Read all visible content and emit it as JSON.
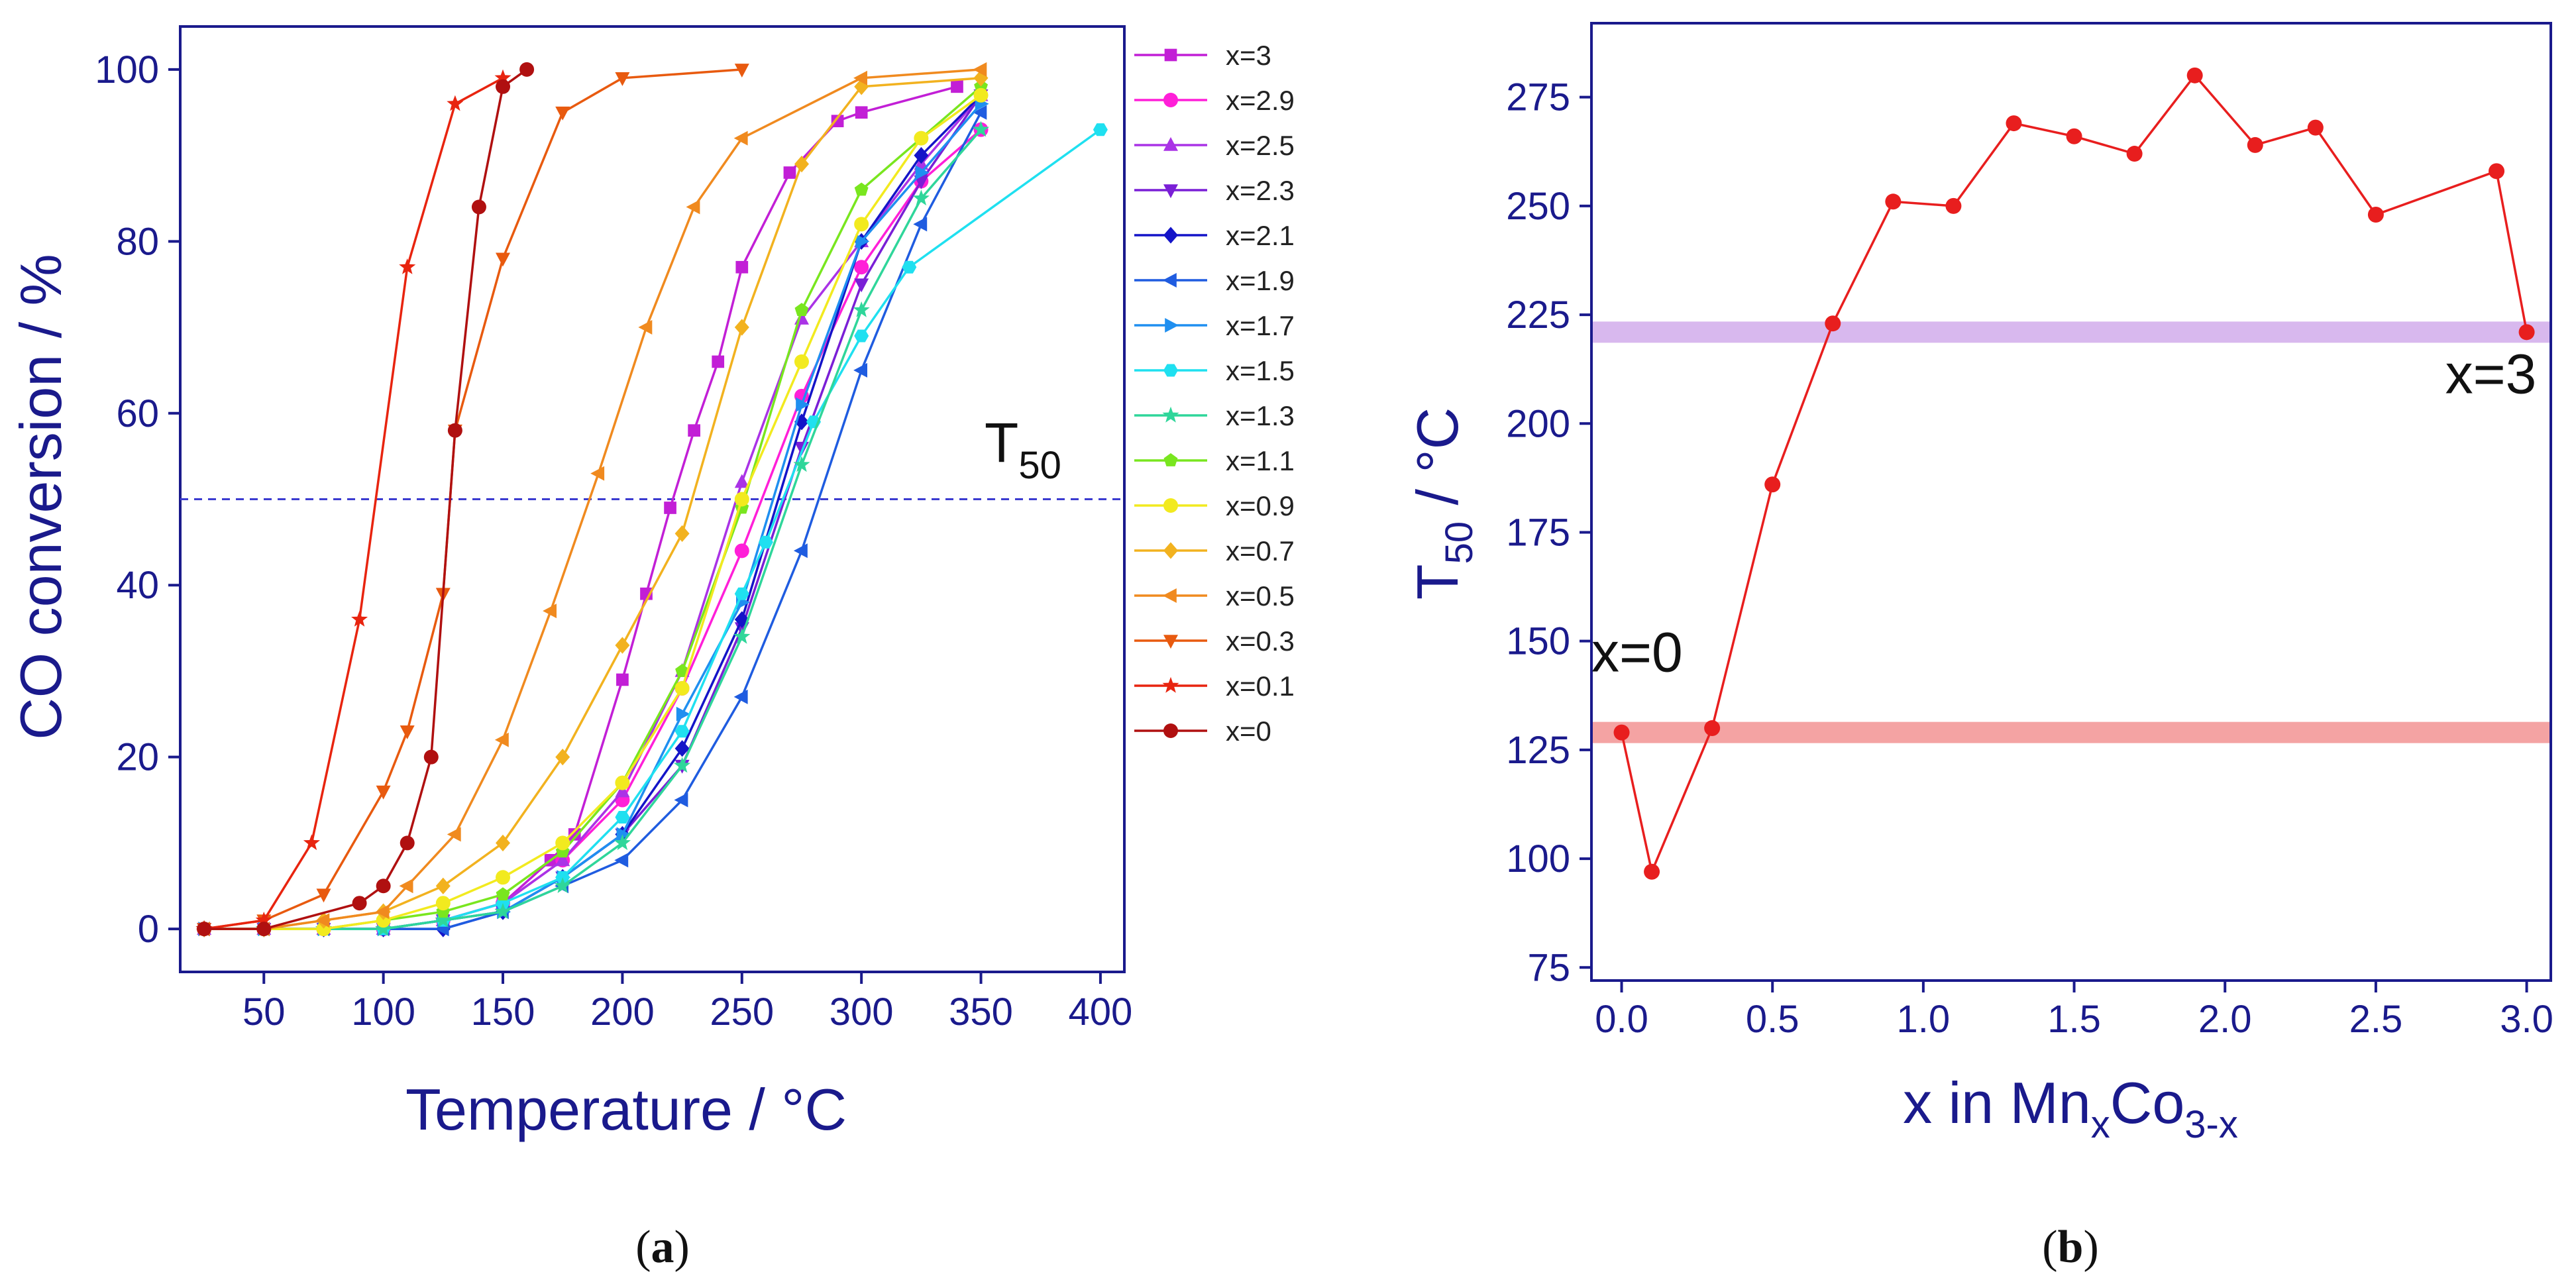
{
  "chart_data": [
    {
      "id": "a",
      "type": "line",
      "caption_prefix": "(",
      "caption_letter": "a",
      "caption_suffix": ")",
      "xlabel": "Temperature / °C",
      "ylabel": "CO conversion / %",
      "xlim": [
        15,
        410
      ],
      "ylim": [
        -5,
        105
      ],
      "xticks": [
        50,
        100,
        150,
        200,
        250,
        300,
        350,
        400
      ],
      "yticks": [
        0,
        20,
        40,
        60,
        80,
        100
      ],
      "reference_line": {
        "y": 50,
        "label_main": "T",
        "label_sub": "50",
        "color": "#3b3bd0"
      },
      "series": [
        {
          "name": "x=3",
          "marker": "square",
          "color": "#c21fd6",
          "x": [
            25,
            50,
            75,
            100,
            125,
            150,
            170,
            180,
            200,
            210,
            220,
            230,
            240,
            250,
            270,
            290,
            300,
            340
          ],
          "y": [
            0,
            0,
            0,
            0,
            1,
            3,
            8,
            11,
            29,
            39,
            49,
            58,
            66,
            77,
            88,
            94,
            95,
            98
          ]
        },
        {
          "name": "x=2.9",
          "marker": "circle",
          "color": "#ff1fd8",
          "x": [
            25,
            50,
            75,
            100,
            125,
            150,
            175,
            200,
            225,
            250,
            275,
            300,
            325,
            350
          ],
          "y": [
            0,
            0,
            0,
            0,
            1,
            3,
            8,
            15,
            28,
            44,
            62,
            77,
            87,
            93
          ]
        },
        {
          "name": "x=2.5",
          "marker": "triangle-up",
          "color": "#aa33e6",
          "x": [
            25,
            50,
            75,
            100,
            125,
            150,
            175,
            200,
            225,
            250,
            275,
            300,
            325,
            350
          ],
          "y": [
            0,
            0,
            0,
            0,
            1,
            3,
            8,
            16,
            30,
            52,
            71,
            80,
            89,
            97
          ]
        },
        {
          "name": "x=2.3",
          "marker": "triangle-down",
          "color": "#7a1fd6",
          "x": [
            25,
            50,
            75,
            100,
            125,
            150,
            175,
            200,
            225,
            250,
            275,
            300,
            325,
            350
          ],
          "y": [
            0,
            0,
            0,
            0,
            1,
            2,
            6,
            11,
            19,
            35,
            56,
            75,
            87,
            97
          ]
        },
        {
          "name": "x=2.1",
          "marker": "diamond",
          "color": "#1414c8",
          "x": [
            25,
            50,
            75,
            100,
            125,
            150,
            175,
            200,
            225,
            250,
            275,
            300,
            325,
            350
          ],
          "y": [
            0,
            0,
            0,
            0,
            0,
            2,
            6,
            11,
            21,
            36,
            59,
            80,
            90,
            97
          ]
        },
        {
          "name": "x=1.9",
          "marker": "triangle-left",
          "color": "#1f5ce0",
          "x": [
            25,
            50,
            75,
            100,
            125,
            150,
            175,
            200,
            225,
            250,
            275,
            300,
            325,
            350
          ],
          "y": [
            0,
            0,
            0,
            0,
            0,
            2,
            5,
            8,
            15,
            27,
            44,
            65,
            82,
            95
          ]
        },
        {
          "name": "x=1.7",
          "marker": "triangle-right",
          "color": "#1f8ff0",
          "x": [
            25,
            50,
            75,
            100,
            125,
            150,
            175,
            200,
            225,
            250,
            275,
            300,
            325,
            350
          ],
          "y": [
            0,
            0,
            0,
            0,
            1,
            2,
            6,
            11,
            25,
            38,
            61,
            80,
            88,
            96
          ]
        },
        {
          "name": "x=1.5",
          "marker": "hexagon",
          "color": "#1fe0f0",
          "x": [
            25,
            50,
            75,
            100,
            125,
            150,
            175,
            200,
            225,
            250,
            260,
            280,
            300,
            320,
            400
          ],
          "y": [
            0,
            0,
            0,
            0,
            1,
            3,
            6,
            13,
            23,
            39,
            45,
            59,
            69,
            77,
            93
          ]
        },
        {
          "name": "x=1.3",
          "marker": "star",
          "color": "#2fd69a",
          "x": [
            25,
            50,
            75,
            100,
            125,
            150,
            175,
            200,
            225,
            250,
            275,
            300,
            325,
            350
          ],
          "y": [
            0,
            0,
            0,
            0,
            1,
            2,
            5,
            10,
            19,
            34,
            54,
            72,
            85,
            93
          ]
        },
        {
          "name": "x=1.1",
          "marker": "pentagon",
          "color": "#79e61f",
          "x": [
            25,
            50,
            75,
            100,
            125,
            150,
            175,
            200,
            225,
            250,
            275,
            300,
            350
          ],
          "y": [
            0,
            0,
            0,
            1,
            2,
            4,
            9,
            17,
            30,
            49,
            72,
            86,
            98
          ]
        },
        {
          "name": "x=0.9",
          "marker": "circle",
          "color": "#f2ea1f",
          "x": [
            25,
            50,
            75,
            100,
            125,
            150,
            175,
            200,
            225,
            250,
            275,
            300,
            325,
            350
          ],
          "y": [
            0,
            0,
            0,
            1,
            3,
            6,
            10,
            17,
            28,
            50,
            66,
            82,
            92,
            97
          ]
        },
        {
          "name": "x=0.7",
          "marker": "diamond",
          "color": "#f2b21f",
          "x": [
            25,
            50,
            75,
            100,
            125,
            150,
            175,
            200,
            225,
            250,
            275,
            300,
            350
          ],
          "y": [
            0,
            0,
            1,
            2,
            5,
            10,
            20,
            33,
            46,
            70,
            89,
            98,
            99
          ]
        },
        {
          "name": "x=0.5",
          "marker": "triangle-left",
          "color": "#f08a1f",
          "x": [
            25,
            50,
            75,
            100,
            110,
            130,
            150,
            170,
            190,
            210,
            230,
            250,
            300,
            350
          ],
          "y": [
            0,
            0,
            1,
            2,
            5,
            11,
            22,
            37,
            53,
            70,
            84,
            92,
            99,
            100
          ]
        },
        {
          "name": "x=0.3",
          "marker": "triangle-down",
          "color": "#e85a0f",
          "x": [
            25,
            50,
            75,
            100,
            110,
            125,
            130,
            150,
            175,
            200,
            250
          ],
          "y": [
            0,
            1,
            4,
            16,
            23,
            39,
            58,
            78,
            95,
            99,
            100
          ]
        },
        {
          "name": "x=0.1",
          "marker": "star",
          "color": "#e8240f",
          "x": [
            25,
            50,
            70,
            90,
            110,
            130,
            150
          ],
          "y": [
            0,
            1,
            10,
            36,
            77,
            96,
            99
          ]
        },
        {
          "name": "x=0",
          "marker": "circle",
          "color": "#b01010",
          "x": [
            25,
            50,
            90,
            100,
            110,
            120,
            130,
            140,
            150,
            160
          ],
          "y": [
            0,
            0,
            3,
            5,
            10,
            20,
            58,
            84,
            98,
            100
          ]
        }
      ]
    },
    {
      "id": "b",
      "type": "line",
      "caption_prefix": "(",
      "caption_letter": "b",
      "caption_suffix": ")",
      "xlabel_main": "x in Mn",
      "xlabel_sub1": "x",
      "xlabel_mid": "Co",
      "xlabel_sub2": "3-x",
      "ylabel_main": "T",
      "ylabel_sub": "50",
      "ylabel_tail": " / °C",
      "xlim": [
        -0.1,
        3.08
      ],
      "ylim": [
        72,
        292
      ],
      "xticks": [
        "0.0",
        "0.5",
        "1.0",
        "1.5",
        "2.0",
        "2.5",
        "3.0"
      ],
      "yticks": [
        "75",
        "100",
        "125",
        "150",
        "175",
        "200",
        "225",
        "250",
        "275"
      ],
      "bands": [
        {
          "y": 221,
          "color": "#d8b8ee"
        },
        {
          "y": 129,
          "color": "#f4a3a3"
        }
      ],
      "annotations": [
        {
          "text": "x=0",
          "x": -0.1,
          "y": 143
        },
        {
          "text": "x=3",
          "x": 2.73,
          "y": 207
        }
      ],
      "series": [
        {
          "name": "T50",
          "marker": "circle",
          "color": "#e81e1e",
          "x": [
            0,
            0.1,
            0.3,
            0.5,
            0.7,
            0.9,
            1.1,
            1.3,
            1.5,
            1.7,
            1.9,
            2.1,
            2.3,
            2.5,
            2.9,
            3.0
          ],
          "y": [
            129,
            97,
            130,
            186,
            223,
            251,
            250,
            269,
            266,
            262,
            280,
            264,
            268,
            248,
            258,
            221
          ]
        }
      ]
    }
  ]
}
